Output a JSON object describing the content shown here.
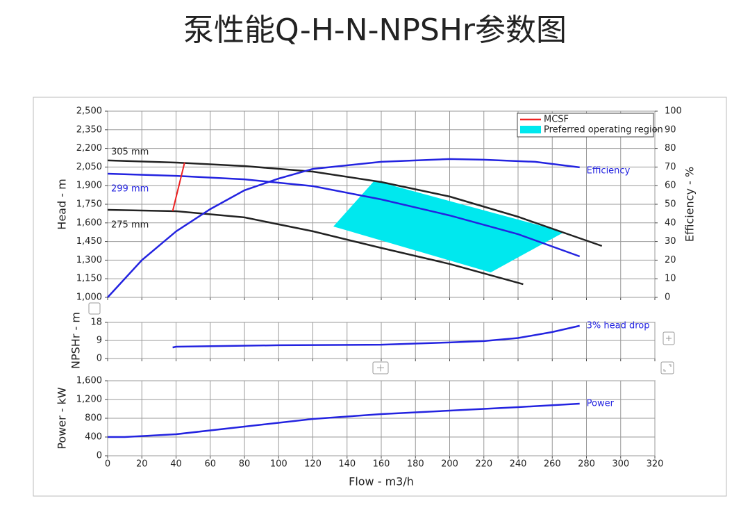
{
  "title": "泵性能Q-H-N-NPSHr参数图",
  "chart_data": [
    {
      "type": "line",
      "ylabel": "Head - m",
      "y2label": "Efficiency - %",
      "xlim": [
        0,
        320
      ],
      "xticks": [
        0,
        20,
        40,
        60,
        80,
        100,
        120,
        140,
        160,
        180,
        200,
        220,
        240,
        260,
        280,
        300,
        320
      ],
      "ylim": [
        1000,
        2500
      ],
      "yticks": [
        {
          "value": 1000,
          "label": "1,000"
        },
        {
          "value": 1150,
          "label": "1,150"
        },
        {
          "value": 1300,
          "label": "1,300"
        },
        {
          "value": 1450,
          "label": "1,450"
        },
        {
          "value": 1600,
          "label": "1,600"
        },
        {
          "value": 1750,
          "label": "1,750"
        },
        {
          "value": 1900,
          "label": "1,900"
        },
        {
          "value": 2050,
          "label": "2,050"
        },
        {
          "value": 2200,
          "label": "2,200"
        },
        {
          "value": 2350,
          "label": "2,350"
        },
        {
          "value": 2500,
          "label": "2,500"
        }
      ],
      "y2lim": [
        0,
        100
      ],
      "y2ticks": [
        0,
        10,
        20,
        30,
        40,
        50,
        60,
        70,
        80,
        90,
        100
      ],
      "grid": true,
      "legend": "upper right",
      "series": [
        {
          "name": "305 mm",
          "color": "#222222",
          "x": [
            0,
            40,
            80,
            120,
            160,
            200,
            240,
            289
          ],
          "values": [
            2103,
            2086,
            2058,
            2013,
            1929,
            1812,
            1649,
            1414
          ]
        },
        {
          "name": "299 mm",
          "color": "#2323e0",
          "x": [
            0,
            40,
            80,
            120,
            160,
            200,
            240,
            276
          ],
          "values": [
            1996,
            1979,
            1951,
            1896,
            1789,
            1660,
            1509,
            1330
          ]
        },
        {
          "name": "275 mm",
          "color": "#222222",
          "x": [
            0,
            40,
            80,
            120,
            160,
            200,
            243
          ],
          "values": [
            1705,
            1694,
            1644,
            1532,
            1398,
            1269,
            1106
          ]
        },
        {
          "name": "Efficiency",
          "color": "#2323e0",
          "axis": "y2",
          "x": [
            0,
            20,
            40,
            60,
            80,
            100,
            120,
            160,
            200,
            220,
            250,
            276
          ],
          "values": [
            0,
            20,
            35.4,
            47.4,
            57.5,
            63.8,
            69,
            72.8,
            74.3,
            73.9,
            72.8,
            69.8
          ]
        }
      ],
      "mcsf": {
        "name": "MCSF",
        "color": "#ee2222",
        "x": [
          38,
          45
        ],
        "values": [
          1694,
          2086
        ]
      },
      "region": {
        "name": "Preferred operating region",
        "color": "#00e8ee",
        "x": [
          132,
          156,
          267,
          224
        ],
        "values": [
          1571,
          1940,
          1526,
          1201
        ]
      }
    },
    {
      "type": "line",
      "ylabel": "NPSHr - m",
      "xlim": [
        0,
        320
      ],
      "xticks": [
        0,
        20,
        40,
        60,
        80,
        100,
        120,
        140,
        160,
        180,
        200,
        220,
        240,
        260,
        280,
        300,
        320
      ],
      "ylim": [
        0,
        18
      ],
      "yticks": [
        0,
        9,
        18
      ],
      "grid": true,
      "series": [
        {
          "name": "3% head drop",
          "color": "#2323e0",
          "x": [
            38,
            40,
            100,
            160,
            200,
            220,
            240,
            260,
            276
          ],
          "values": [
            5.5,
            5.9,
            6.6,
            6.9,
            8,
            8.7,
            10.2,
            13.2,
            16.3
          ]
        }
      ]
    },
    {
      "type": "line",
      "ylabel": "Power - kW",
      "xlabel": "Flow - m3/h",
      "xlim": [
        0,
        320
      ],
      "xticks": [
        0,
        20,
        40,
        60,
        80,
        100,
        120,
        140,
        160,
        180,
        200,
        220,
        240,
        260,
        280,
        300,
        320
      ],
      "ylim": [
        0,
        1600
      ],
      "yticks": [
        0,
        400,
        800,
        {
          "value": 1200,
          "label": "1,200"
        },
        {
          "value": 1600,
          "label": "1,600"
        }
      ],
      "grid": true,
      "series": [
        {
          "name": "Power",
          "color": "#2323e0",
          "x": [
            0,
            10,
            40,
            80,
            120,
            160,
            200,
            240,
            276
          ],
          "values": [
            400,
            400,
            459,
            622,
            785,
            889,
            963,
            1037,
            1111
          ]
        }
      ]
    }
  ]
}
